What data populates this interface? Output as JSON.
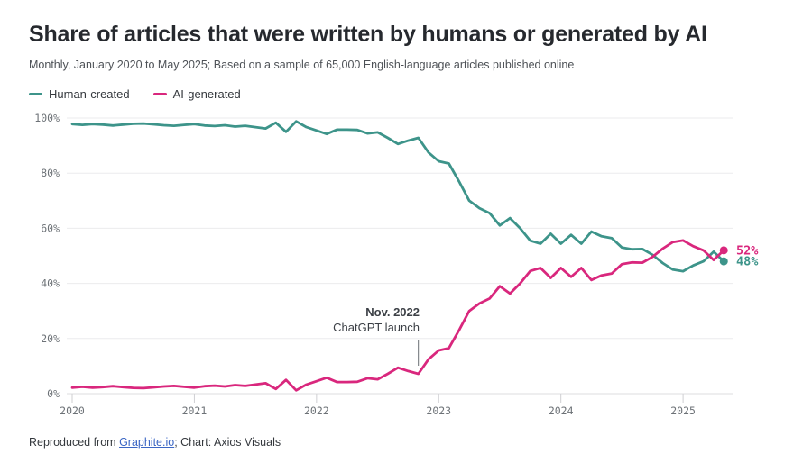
{
  "header": {
    "title": "Share of articles that were written by humans or generated by AI",
    "subtitle": "Monthly, January 2020 to May 2025; Based on a sample of 65,000 English-language articles published online"
  },
  "legend": [
    {
      "label": "Human-created",
      "color": "#3d948a"
    },
    {
      "label": "AI-generated",
      "color": "#d9277d"
    }
  ],
  "annotation": {
    "line1": "Nov. 2022",
    "line2": "ChatGPT launch",
    "month_index": 34
  },
  "footer": {
    "prefix": "Reproduced from ",
    "link": "Graphite.io",
    "suffix": "; Chart: Axios Visuals"
  },
  "chart_data": {
    "type": "line",
    "title": "Share of articles that were written by humans or generated by AI",
    "x_unit": "month",
    "x_range": [
      "2020-01",
      "2025-05"
    ],
    "ylim": [
      0,
      100
    ],
    "grid": true,
    "legend_position": "top-left",
    "yticks": [
      {
        "label": "0%",
        "value": 0
      },
      {
        "label": "20%",
        "value": 20
      },
      {
        "label": "40%",
        "value": 40
      },
      {
        "label": "60%",
        "value": 60
      },
      {
        "label": "80%",
        "value": 80
      },
      {
        "label": "100%",
        "value": 100
      }
    ],
    "xticks": [
      {
        "label": "2020",
        "month_index": 0
      },
      {
        "label": "2021",
        "month_index": 12
      },
      {
        "label": "2022",
        "month_index": 24
      },
      {
        "label": "2023",
        "month_index": 36
      },
      {
        "label": "2024",
        "month_index": 48
      },
      {
        "label": "2025",
        "month_index": 60
      }
    ],
    "months": [
      "2020-01",
      "2020-02",
      "2020-03",
      "2020-04",
      "2020-05",
      "2020-06",
      "2020-07",
      "2020-08",
      "2020-09",
      "2020-10",
      "2020-11",
      "2020-12",
      "2021-01",
      "2021-02",
      "2021-03",
      "2021-04",
      "2021-05",
      "2021-06",
      "2021-07",
      "2021-08",
      "2021-09",
      "2021-10",
      "2021-11",
      "2021-12",
      "2022-01",
      "2022-02",
      "2022-03",
      "2022-04",
      "2022-05",
      "2022-06",
      "2022-07",
      "2022-08",
      "2022-09",
      "2022-10",
      "2022-11",
      "2022-12",
      "2023-01",
      "2023-02",
      "2023-03",
      "2023-04",
      "2023-05",
      "2023-06",
      "2023-07",
      "2023-08",
      "2023-09",
      "2023-10",
      "2023-11",
      "2023-12",
      "2024-01",
      "2024-02",
      "2024-03",
      "2024-04",
      "2024-05",
      "2024-06",
      "2024-07",
      "2024-08",
      "2024-09",
      "2024-10",
      "2024-11",
      "2024-12",
      "2025-01",
      "2025-02",
      "2025-03",
      "2025-04",
      "2025-05"
    ],
    "series": [
      {
        "name": "Human-created",
        "color": "#3d948a",
        "end_label": "48%",
        "values": [
          97.8,
          97.5,
          97.8,
          97.6,
          97.3,
          97.6,
          97.9,
          98,
          97.7,
          97.4,
          97.2,
          97.5,
          97.8,
          97.3,
          97.1,
          97.4,
          96.9,
          97.2,
          96.7,
          96.2,
          98.3,
          95,
          98.8,
          96.7,
          95.5,
          94.2,
          95.8,
          95.8,
          95.7,
          94.4,
          94.8,
          92.8,
          90.6,
          91.8,
          92.8,
          87.5,
          84.3,
          83.5,
          77,
          70,
          67.3,
          65.5,
          61,
          63.7,
          60,
          55.5,
          54.4,
          58,
          54.4,
          57.6,
          54.4,
          58.8,
          57.1,
          56.4,
          53,
          52.4,
          52.5,
          50.4,
          47.4,
          45,
          44.4,
          46.5,
          48,
          51.5,
          48
        ]
      },
      {
        "name": "AI-generated",
        "color": "#d9277d",
        "end_label": "52%",
        "values": [
          2.2,
          2.5,
          2.2,
          2.4,
          2.7,
          2.4,
          2.1,
          2,
          2.3,
          2.6,
          2.8,
          2.5,
          2.2,
          2.7,
          2.9,
          2.6,
          3.1,
          2.8,
          3.3,
          3.8,
          1.7,
          5,
          1.2,
          3.3,
          4.5,
          5.8,
          4.2,
          4.2,
          4.3,
          5.6,
          5.2,
          7.2,
          9.4,
          8.2,
          7.2,
          12.5,
          15.7,
          16.5,
          23,
          30,
          32.7,
          34.5,
          39,
          36.3,
          40,
          44.5,
          45.6,
          42,
          45.6,
          42.4,
          45.6,
          41.2,
          42.9,
          43.6,
          47,
          47.6,
          47.5,
          49.6,
          52.6,
          55,
          55.6,
          53.5,
          52,
          48.5,
          52
        ]
      }
    ]
  }
}
